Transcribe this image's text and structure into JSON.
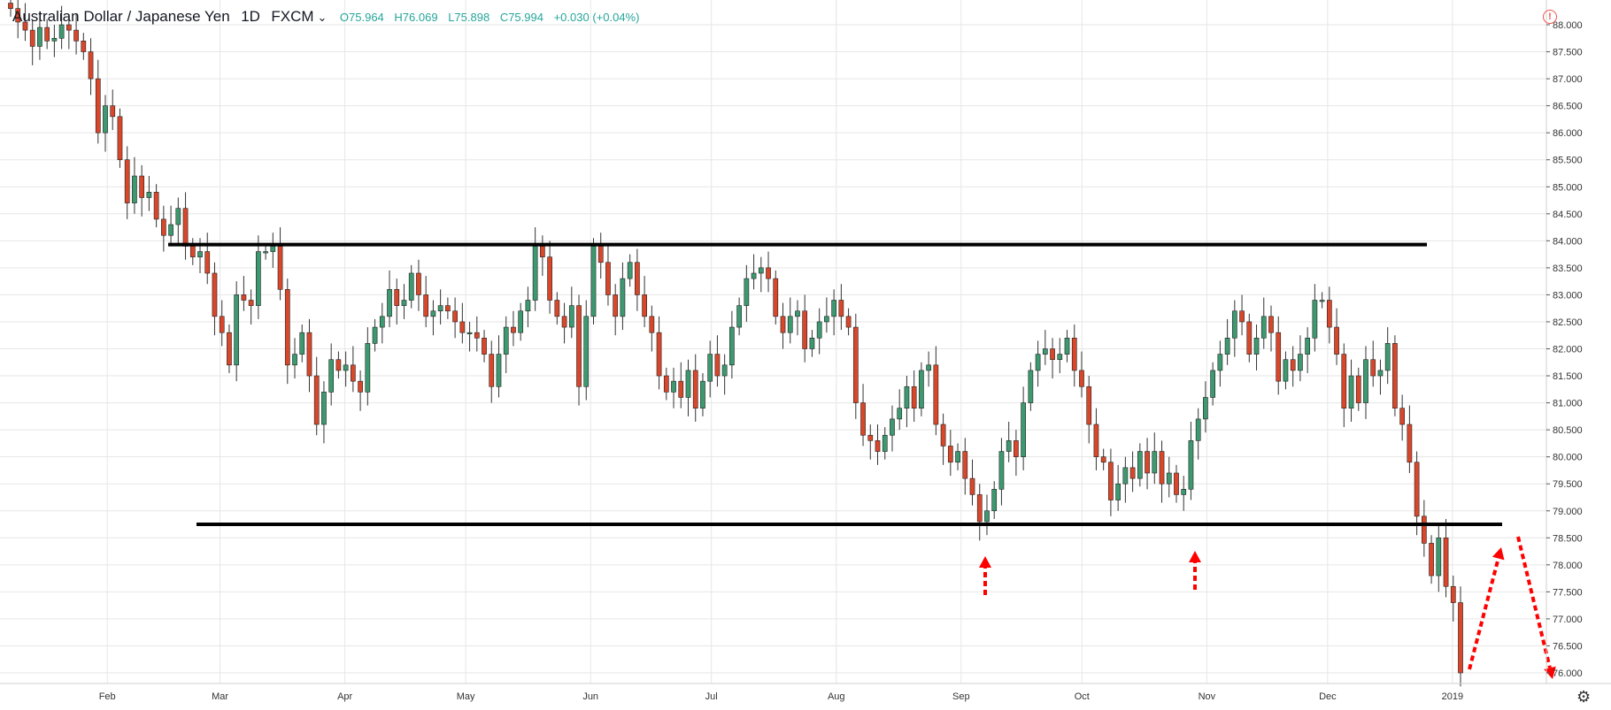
{
  "header": {
    "symbol": "Australian Dollar / Japanese Yen",
    "interval": "1D",
    "exchange": "FXCM",
    "open": "O75.964",
    "high": "H76.069",
    "low": "L75.898",
    "close": "C75.994",
    "change": "+0.030 (+0.04%)"
  },
  "colors": {
    "up": "#3d9970",
    "down": "#d9472b",
    "grid": "#e6e6e6",
    "line": "#000000",
    "arrow": "#ff0000",
    "ohlc_text": "#26a69a"
  },
  "icons": {
    "alert": "alert-circle-icon",
    "settings": "gear-icon"
  },
  "chart_data": {
    "type": "candlestick",
    "title": "Australian Dollar / Japanese Yen 1D FXCM",
    "ylim": [
      76.0,
      88.0
    ],
    "yticks": [
      "76.000",
      "76.500",
      "77.000",
      "77.500",
      "78.000",
      "78.500",
      "79.000",
      "79.500",
      "80.000",
      "80.500",
      "81.000",
      "81.500",
      "82.000",
      "82.500",
      "83.000",
      "83.500",
      "84.000",
      "84.500",
      "85.000",
      "85.500",
      "86.000",
      "86.500",
      "87.000",
      "87.500",
      "88.000"
    ],
    "x_labels": [
      {
        "label": "Feb",
        "date": "2018-02-01"
      },
      {
        "label": "Mar",
        "date": "2018-03-01"
      },
      {
        "label": "Apr",
        "date": "2018-04-01"
      },
      {
        "label": "May",
        "date": "2018-05-01"
      },
      {
        "label": "Jun",
        "date": "2018-06-01"
      },
      {
        "label": "Jul",
        "date": "2018-07-01"
      },
      {
        "label": "Aug",
        "date": "2018-08-01"
      },
      {
        "label": "Sep",
        "date": "2018-09-01"
      },
      {
        "label": "Oct",
        "date": "2018-10-01"
      },
      {
        "label": "Nov",
        "date": "2018-11-01"
      },
      {
        "label": "Dec",
        "date": "2018-12-01"
      },
      {
        "label": "2019",
        "date": "2019-01-01"
      }
    ],
    "date_range": [
      "2018-01-08",
      "2019-01-03"
    ],
    "closes": [
      88.3,
      88.05,
      87.9,
      87.6,
      87.95,
      87.7,
      87.75,
      88.0,
      87.9,
      87.7,
      87.5,
      87.0,
      86.0,
      86.5,
      86.3,
      85.5,
      84.7,
      85.2,
      84.8,
      84.9,
      84.4,
      84.1,
      84.3,
      84.6,
      83.9,
      83.7,
      83.8,
      83.4,
      82.6,
      82.3,
      81.7,
      83.0,
      82.9,
      82.8,
      83.8,
      83.8,
      83.9,
      83.1,
      81.7,
      81.9,
      82.3,
      81.5,
      80.6,
      81.2,
      81.8,
      81.6,
      81.7,
      81.4,
      81.2,
      82.1,
      82.4,
      82.6,
      83.1,
      82.8,
      82.9,
      83.4,
      83.0,
      82.6,
      82.7,
      82.8,
      82.7,
      82.5,
      82.3,
      82.3,
      82.2,
      81.9,
      81.3,
      81.9,
      82.4,
      82.3,
      82.7,
      82.9,
      83.9,
      83.7,
      82.9,
      82.6,
      82.4,
      82.8,
      81.3,
      82.6,
      83.9,
      83.6,
      83.0,
      82.6,
      83.3,
      83.6,
      83.0,
      82.6,
      82.3,
      81.5,
      81.2,
      81.4,
      81.1,
      81.6,
      80.9,
      81.4,
      81.9,
      81.5,
      81.7,
      82.4,
      82.8,
      83.3,
      83.4,
      83.5,
      83.3,
      82.6,
      82.3,
      82.6,
      82.7,
      82.0,
      82.2,
      82.5,
      82.6,
      82.9,
      82.6,
      82.4,
      81.0,
      80.4,
      80.3,
      80.1,
      80.4,
      80.7,
      80.9,
      81.3,
      80.9,
      81.6,
      81.7,
      80.6,
      80.2,
      79.9,
      80.1,
      79.6,
      79.3,
      78.8,
      79.0,
      79.4,
      80.1,
      80.3,
      80.0,
      81.0,
      81.6,
      81.9,
      82.0,
      81.8,
      81.9,
      82.2,
      81.6,
      81.3,
      80.6,
      80.0,
      79.9,
      79.2,
      79.5,
      79.8,
      79.6,
      80.1,
      79.7,
      80.1,
      79.5,
      79.7,
      79.3,
      79.4,
      80.3,
      80.7,
      81.1,
      81.6,
      81.9,
      82.2,
      82.7,
      82.5,
      81.9,
      82.2,
      82.6,
      82.3,
      81.4,
      81.8,
      81.6,
      81.9,
      82.2,
      82.9,
      82.9,
      82.4,
      81.9,
      80.9,
      81.5,
      81.0,
      81.8,
      81.5,
      81.6,
      82.1,
      80.9,
      80.6,
      79.9,
      78.9,
      78.4,
      77.8,
      78.5,
      77.6,
      77.3,
      76.0
    ]
  },
  "annotations": {
    "resistance": 83.93,
    "support": 78.75
  }
}
